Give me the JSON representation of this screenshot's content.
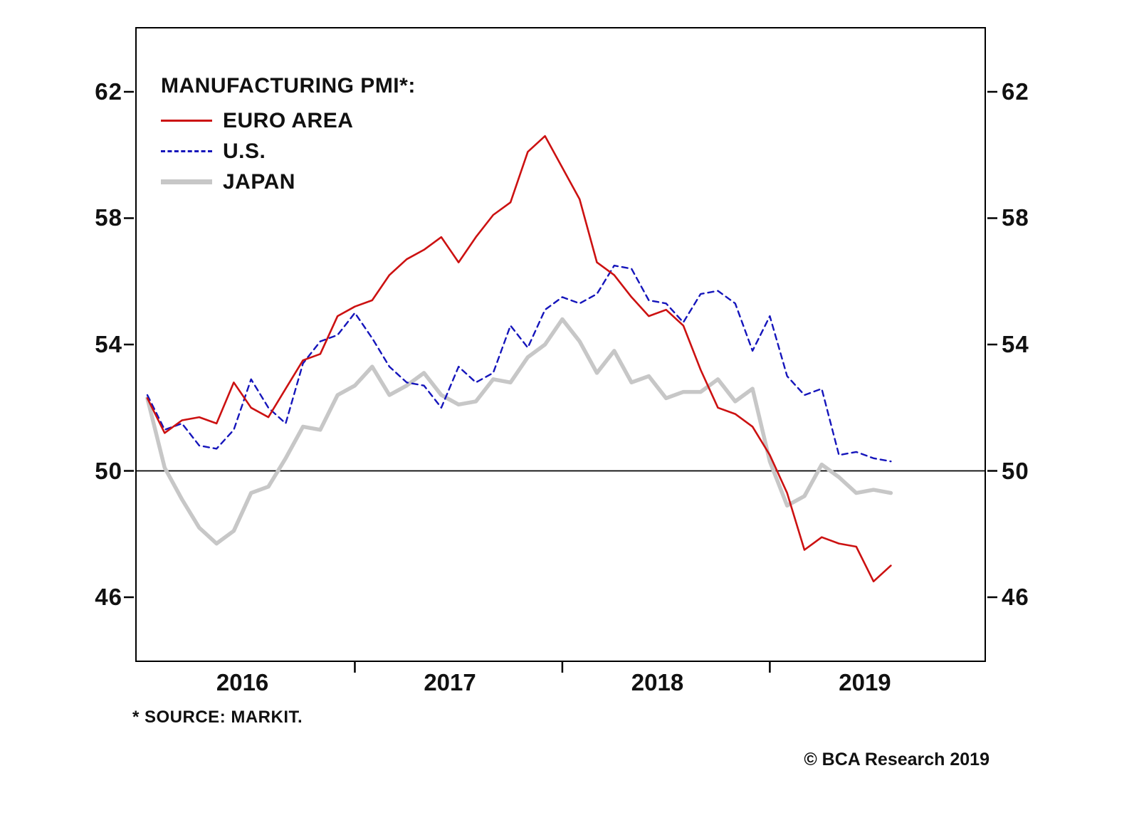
{
  "chart_data": {
    "type": "line",
    "title": "MANUFACTURING PMI*:",
    "x_unit": "month",
    "x_start": "2016-01",
    "x_end": "2019-08",
    "x_labels": [
      "2016",
      "2017",
      "2018",
      "2019"
    ],
    "x_range_month_index": [
      -0.7,
      48.5
    ],
    "y_ticks": [
      46,
      50,
      54,
      58,
      62
    ],
    "y_ticks_mirrored_right": true,
    "y_range": [
      43.95,
      64.05
    ],
    "reference_line": 50,
    "grid": false,
    "legend_position": "top-left-inside",
    "series": [
      {
        "name": "EURO AREA",
        "color": "#cc1111",
        "style": "solid",
        "width": 2.6,
        "values": [
          52.3,
          51.2,
          51.6,
          51.7,
          51.5,
          52.8,
          52.0,
          51.7,
          52.6,
          53.5,
          53.7,
          54.9,
          55.2,
          55.4,
          56.2,
          56.7,
          57.0,
          57.4,
          56.6,
          57.4,
          58.1,
          58.5,
          60.1,
          60.6,
          59.6,
          58.6,
          56.6,
          56.2,
          55.5,
          54.9,
          55.1,
          54.6,
          53.2,
          52.0,
          51.8,
          51.4,
          50.5,
          49.3,
          47.5,
          47.9,
          47.7,
          47.6,
          46.5,
          47.0
        ]
      },
      {
        "name": "U.S.",
        "color": "#1515bb",
        "style": "dashed",
        "width": 2.4,
        "values": [
          52.4,
          51.3,
          51.5,
          50.8,
          50.7,
          51.3,
          52.9,
          52.0,
          51.5,
          53.4,
          54.1,
          54.3,
          55.0,
          54.2,
          53.3,
          52.8,
          52.7,
          52.0,
          53.3,
          52.8,
          53.1,
          54.6,
          53.9,
          55.1,
          55.5,
          55.3,
          55.6,
          56.5,
          56.4,
          55.4,
          55.3,
          54.7,
          55.6,
          55.7,
          55.3,
          53.8,
          54.9,
          53.0,
          52.4,
          52.6,
          50.5,
          50.6,
          50.4,
          50.3
        ]
      },
      {
        "name": "JAPAN",
        "color": "#c7c7c7",
        "style": "solid",
        "width": 5.5,
        "values": [
          52.3,
          50.1,
          49.1,
          48.2,
          47.7,
          48.1,
          49.3,
          49.5,
          50.4,
          51.4,
          51.3,
          52.4,
          52.7,
          53.3,
          52.4,
          52.7,
          53.1,
          52.4,
          52.1,
          52.2,
          52.9,
          52.8,
          53.6,
          54.0,
          54.8,
          54.1,
          53.1,
          53.8,
          52.8,
          53.0,
          52.3,
          52.5,
          52.5,
          52.9,
          52.2,
          52.6,
          50.3,
          48.9,
          49.2,
          50.2,
          49.8,
          49.3,
          49.4,
          49.3
        ]
      }
    ]
  },
  "footnotes": {
    "source_note": "* SOURCE: MARKIT.",
    "copyright": "© BCA Research 2019"
  }
}
